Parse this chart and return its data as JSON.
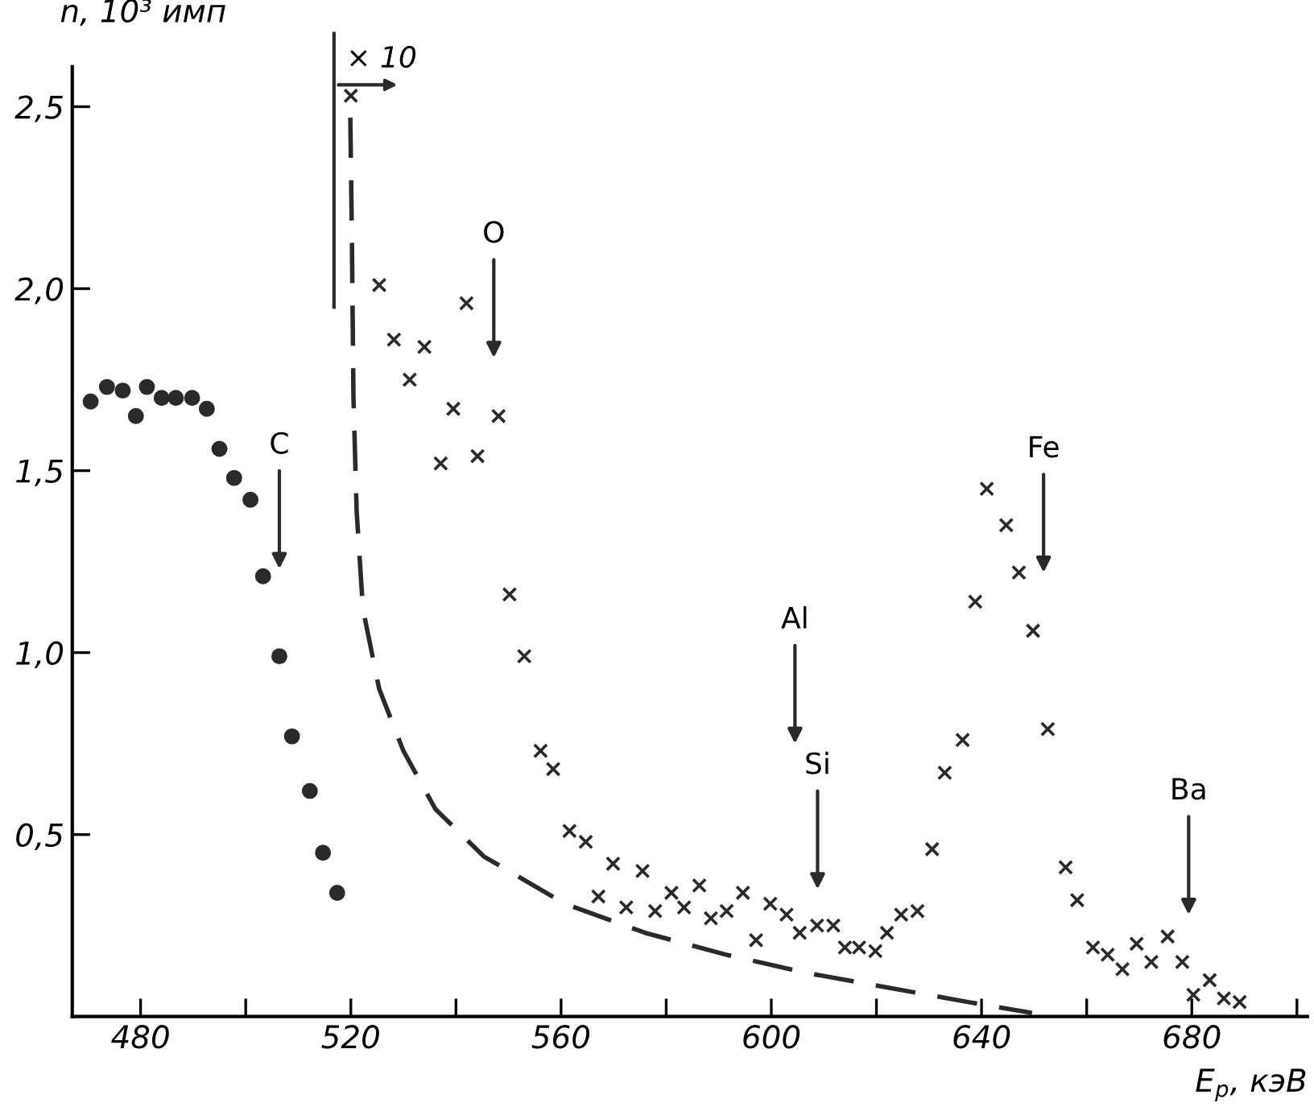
{
  "chart_data": {
    "type": "scatter",
    "xlabel": "E$_{p}$, кэВ",
    "ylabel": "n, 10³ имп",
    "xlim": [
      467,
      702
    ],
    "ylim": [
      0,
      2.61
    ],
    "xticks": [
      480,
      {
        "value": 500,
        "label": null
      },
      520,
      {
        "value": 540,
        "label": null
      },
      560,
      {
        "value": 580,
        "label": null
      },
      600,
      {
        "value": 620,
        "label": null
      },
      640,
      {
        "value": 660,
        "label": null
      },
      680,
      {
        "value": 700,
        "label": null
      }
    ],
    "yticks": [
      {
        "value": 0.5,
        "label": "0,5"
      },
      {
        "value": 1.0,
        "label": "1,0"
      },
      {
        "value": 1.5,
        "label": "1,5"
      },
      {
        "value": 2.0,
        "label": "2,0"
      },
      {
        "value": 2.5,
        "label": "2,5"
      }
    ],
    "grid": false,
    "series": [
      {
        "marker": "circle",
        "color": "#2a2a2a",
        "x": [
          470.5,
          473.6,
          476.6,
          479.1,
          481.2,
          484.0,
          486.7,
          489.8,
          492.6,
          495.0,
          497.8,
          500.9,
          503.3,
          506.4,
          508.8,
          512.2,
          514.7,
          517.4
        ],
        "values": [
          1.69,
          1.73,
          1.72,
          1.65,
          1.73,
          1.7,
          1.7,
          1.7,
          1.67,
          1.56,
          1.48,
          1.42,
          1.21,
          0.99,
          0.77,
          0.62,
          0.45,
          0.34
        ]
      },
      {
        "marker": "cross",
        "color": "#2a2a2a",
        "x": [
          520.0,
          525.4,
          528.2,
          531.2,
          534.0,
          537.1,
          539.5,
          542.0,
          544.1,
          548.1,
          550.2,
          553.0,
          556.1,
          558.5,
          561.6,
          564.7,
          567.1,
          569.9,
          572.4,
          575.5,
          577.9,
          581.0,
          583.4,
          586.3,
          588.5,
          591.5,
          594.6,
          597.1,
          599.8,
          602.9,
          605.4,
          608.7,
          611.8,
          614.0,
          616.7,
          619.8,
          622.0,
          624.7,
          627.8,
          630.6,
          633.0,
          636.4,
          638.8,
          641.0,
          644.7,
          647.1,
          649.8,
          652.6,
          656.0,
          658.2,
          661.2,
          664.0,
          666.8,
          669.5,
          672.3,
          675.4,
          678.2,
          680.3,
          683.4,
          686.1,
          689.1
        ],
        "values": [
          2.53,
          2.01,
          1.86,
          1.75,
          1.84,
          1.52,
          1.67,
          1.96,
          1.54,
          1.65,
          1.16,
          0.99,
          0.73,
          0.68,
          0.51,
          0.48,
          0.33,
          0.42,
          0.3,
          0.4,
          0.29,
          0.34,
          0.3,
          0.36,
          0.27,
          0.29,
          0.34,
          0.21,
          0.31,
          0.28,
          0.23,
          0.25,
          0.25,
          0.19,
          0.19,
          0.18,
          0.23,
          0.28,
          0.29,
          0.46,
          0.67,
          0.76,
          1.14,
          1.45,
          1.35,
          1.22,
          1.06,
          0.79,
          0.41,
          0.32,
          0.19,
          0.17,
          0.13,
          0.2,
          0.15,
          0.22,
          0.15,
          0.06,
          0.1,
          0.05,
          0.04
        ]
      },
      {
        "type": "line",
        "marker": "none",
        "line_style": "dashed",
        "color": "#2a2a2a",
        "x": [
          519.9,
          520.2,
          520.5,
          521.1,
          522.3,
          525.4,
          530.0,
          536.1,
          545.3,
          560.7,
          576.0,
          591.4,
          606.7,
          622.0,
          637.4,
          649.6
        ],
        "values": [
          2.47,
          2.14,
          1.7,
          1.39,
          1.12,
          0.9,
          0.73,
          0.57,
          0.44,
          0.31,
          0.23,
          0.17,
          0.12,
          0.08,
          0.04,
          0.01
        ]
      }
    ],
    "annotations": [
      "× 10",
      "C",
      "O",
      "Al",
      "Si",
      "Fe",
      "Ba"
    ]
  }
}
